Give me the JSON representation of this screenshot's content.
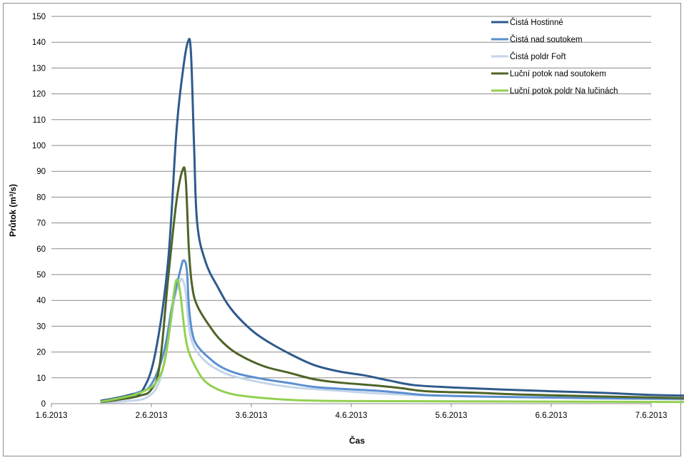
{
  "chart_data": {
    "type": "line",
    "title": "",
    "xlabel": "Čas",
    "ylabel": "Průtok (m³/s)",
    "ylim": [
      0,
      150
    ],
    "yticks": [
      0,
      10,
      20,
      30,
      40,
      50,
      60,
      70,
      80,
      90,
      100,
      110,
      120,
      130,
      140,
      150
    ],
    "xlim": [
      "2013-06-01",
      "2013-06-07"
    ],
    "xticks": [
      {
        "date": "2013-06-01",
        "label": "1.6.2013"
      },
      {
        "date": "2013-06-02",
        "label": "2.6.2013"
      },
      {
        "date": "2013-06-03",
        "label": "3.6.2013"
      },
      {
        "date": "2013-06-04",
        "label": "4.6.2013"
      },
      {
        "date": "2013-06-05",
        "label": "5.6.2013"
      },
      {
        "date": "2013-06-06",
        "label": "6.6.2013"
      },
      {
        "date": "2013-06-07",
        "label": "7.6.2013"
      }
    ],
    "grid": "horizontal",
    "legend_position": "top-right",
    "series": [
      {
        "name": "Čistá Hostinné",
        "color": "#2f5a8c",
        "points": [
          [
            "2013-06-01 12:00",
            1.2
          ],
          [
            "2013-06-01 15:00",
            2
          ],
          [
            "2013-06-01 19:00",
            3.5
          ],
          [
            "2013-06-01 22:00",
            5.5
          ],
          [
            "2013-06-02 01:00",
            20
          ],
          [
            "2013-06-02 04:00",
            55
          ],
          [
            "2013-06-02 06:00",
            105
          ],
          [
            "2013-06-02 07:30",
            128
          ],
          [
            "2013-06-02 08:45",
            140
          ],
          [
            "2013-06-02 09:30",
            136
          ],
          [
            "2013-06-02 10:15",
            100
          ],
          [
            "2013-06-02 11:00",
            70
          ],
          [
            "2013-06-02 13:00",
            55
          ],
          [
            "2013-06-02 16:00",
            45
          ],
          [
            "2013-06-02 19:00",
            37
          ],
          [
            "2013-06-02 23:00",
            30
          ],
          [
            "2013-06-03 03:00",
            25
          ],
          [
            "2013-06-03 09:00",
            19.5
          ],
          [
            "2013-06-03 15:00",
            15
          ],
          [
            "2013-06-03 21:00",
            12.5
          ],
          [
            "2013-06-04 03:00",
            11
          ],
          [
            "2013-06-04 09:00",
            9
          ],
          [
            "2013-06-04 15:00",
            7.2
          ],
          [
            "2013-06-05 00:00",
            6.3
          ],
          [
            "2013-06-05 12:00",
            5.5
          ],
          [
            "2013-06-06 00:00",
            4.8
          ],
          [
            "2013-06-06 12:00",
            4.2
          ],
          [
            "2013-06-07 00:00",
            3.4
          ],
          [
            "2013-06-07 12:00",
            3
          ]
        ]
      },
      {
        "name": "Čistá nad soutokem",
        "color": "#5b8fd0",
        "points": [
          [
            "2013-06-01 12:00",
            1
          ],
          [
            "2013-06-01 16:00",
            2.2
          ],
          [
            "2013-06-01 21:00",
            4.5
          ],
          [
            "2013-06-02 00:00",
            7.5
          ],
          [
            "2013-06-02 03:00",
            20
          ],
          [
            "2013-06-02 05:00",
            38
          ],
          [
            "2013-06-02 07:00",
            52
          ],
          [
            "2013-06-02 07:45",
            55.5
          ],
          [
            "2013-06-02 08:30",
            52
          ],
          [
            "2013-06-02 09:00",
            38
          ],
          [
            "2013-06-02 09:45",
            28
          ],
          [
            "2013-06-02 11:00",
            22.5
          ],
          [
            "2013-06-02 14:00",
            17.5
          ],
          [
            "2013-06-02 17:00",
            14
          ],
          [
            "2013-06-02 21:00",
            11.5
          ],
          [
            "2013-06-03 03:00",
            9.5
          ],
          [
            "2013-06-03 09:00",
            8
          ],
          [
            "2013-06-03 15:00",
            6.5
          ],
          [
            "2013-06-03 21:00",
            5.8
          ],
          [
            "2013-06-04 06:00",
            5
          ],
          [
            "2013-06-04 12:00",
            4.2
          ],
          [
            "2013-06-04 18:00",
            3.3
          ],
          [
            "2013-06-05 06:00",
            2.8
          ],
          [
            "2013-06-05 18:00",
            2.5
          ],
          [
            "2013-06-06 12:00",
            2.1
          ],
          [
            "2013-06-07 12:00",
            1.8
          ]
        ]
      },
      {
        "name": "Čistá poldr Fořt",
        "color": "#c3d5ea",
        "points": [
          [
            "2013-06-01 12:00",
            0.4
          ],
          [
            "2013-06-01 18:00",
            1
          ],
          [
            "2013-06-01 23:00",
            2.5
          ],
          [
            "2013-06-02 02:00",
            9
          ],
          [
            "2013-06-02 04:00",
            25
          ],
          [
            "2013-06-02 05:30",
            40
          ],
          [
            "2013-06-02 06:45",
            47
          ],
          [
            "2013-06-02 07:30",
            48
          ],
          [
            "2013-06-02 08:15",
            43
          ],
          [
            "2013-06-02 09:00",
            30
          ],
          [
            "2013-06-02 10:00",
            23
          ],
          [
            "2013-06-02 12:00",
            18
          ],
          [
            "2013-06-02 15:00",
            14
          ],
          [
            "2013-06-02 19:00",
            11
          ],
          [
            "2013-06-03 00:00",
            9
          ],
          [
            "2013-06-03 06:00",
            7.2
          ],
          [
            "2013-06-03 12:00",
            6
          ],
          [
            "2013-06-03 21:00",
            5
          ],
          [
            "2013-06-04 06:00",
            4
          ],
          [
            "2013-06-04 18:00",
            3.2
          ],
          [
            "2013-06-05 12:00",
            2.6
          ],
          [
            "2013-06-06 12:00",
            2
          ],
          [
            "2013-06-07 12:00",
            1.6
          ]
        ]
      },
      {
        "name": "Luční potok nad soutokem",
        "color": "#4e6426",
        "points": [
          [
            "2013-06-01 12:00",
            0.6
          ],
          [
            "2013-06-01 16:00",
            1.5
          ],
          [
            "2013-06-01 21:00",
            3
          ],
          [
            "2013-06-02 00:00",
            5.5
          ],
          [
            "2013-06-02 02:00",
            15
          ],
          [
            "2013-06-02 04:00",
            48
          ],
          [
            "2013-06-02 06:00",
            78
          ],
          [
            "2013-06-02 07:30",
            90.5
          ],
          [
            "2013-06-02 08:15",
            87
          ],
          [
            "2013-06-02 09:00",
            60
          ],
          [
            "2013-06-02 09:45",
            46
          ],
          [
            "2013-06-02 11:00",
            38
          ],
          [
            "2013-06-02 14:00",
            30
          ],
          [
            "2013-06-02 17:00",
            24
          ],
          [
            "2013-06-02 21:00",
            19
          ],
          [
            "2013-06-03 03:00",
            14.5
          ],
          [
            "2013-06-03 09:00",
            12
          ],
          [
            "2013-06-03 15:00",
            9.5
          ],
          [
            "2013-06-03 21:00",
            8.2
          ],
          [
            "2013-06-04 06:00",
            7
          ],
          [
            "2013-06-04 12:00",
            6
          ],
          [
            "2013-06-04 18:00",
            4.8
          ],
          [
            "2013-06-05 06:00",
            4.2
          ],
          [
            "2013-06-05 18:00",
            3.5
          ],
          [
            "2013-06-06 12:00",
            2.8
          ],
          [
            "2013-06-07 12:00",
            2
          ]
        ]
      },
      {
        "name": "Luční potok poldr Na lučinách",
        "color": "#92d050",
        "points": [
          [
            "2013-06-01 12:00",
            0.8
          ],
          [
            "2013-06-01 16:00",
            2
          ],
          [
            "2013-06-01 20:00",
            3.5
          ],
          [
            "2013-06-01 23:00",
            5.5
          ],
          [
            "2013-06-02 01:00",
            8
          ],
          [
            "2013-06-02 03:00",
            15
          ],
          [
            "2013-06-02 04:30",
            30
          ],
          [
            "2013-06-02 05:30",
            44
          ],
          [
            "2013-06-02 06:15",
            48
          ],
          [
            "2013-06-02 07:00",
            42
          ],
          [
            "2013-06-02 08:00",
            28
          ],
          [
            "2013-06-02 09:00",
            20
          ],
          [
            "2013-06-02 11:00",
            13
          ],
          [
            "2013-06-02 13:00",
            8.5
          ],
          [
            "2013-06-02 16:00",
            5.5
          ],
          [
            "2013-06-02 20:00",
            3.5
          ],
          [
            "2013-06-03 02:00",
            2.3
          ],
          [
            "2013-06-03 08:00",
            1.6
          ],
          [
            "2013-06-03 14:00",
            1.2
          ],
          [
            "2013-06-04 00:00",
            1
          ],
          [
            "2013-06-05 00:00",
            0.9
          ],
          [
            "2013-06-06 00:00",
            0.8
          ],
          [
            "2013-06-07 12:00",
            0.6
          ]
        ]
      }
    ]
  }
}
